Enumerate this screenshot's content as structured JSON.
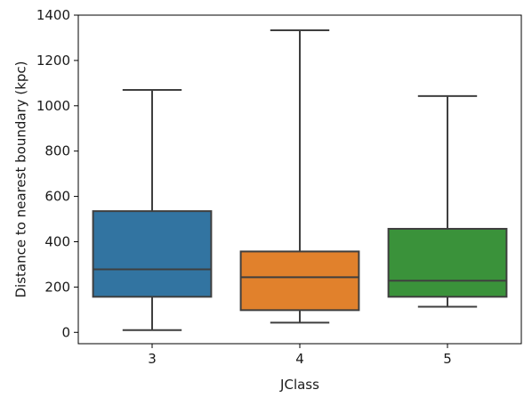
{
  "chart_data": {
    "type": "box",
    "xlabel": "JClass",
    "ylabel": "Distance to nearest boundary (kpc)",
    "ylim": [
      -50,
      1400
    ],
    "yticks": [
      0,
      200,
      400,
      600,
      800,
      1000,
      1200,
      1400
    ],
    "grid": false,
    "categories": [
      "3",
      "4",
      "5"
    ],
    "boxes": [
      {
        "category": "3",
        "whisker_low": 10,
        "q1": 157,
        "median": 278,
        "q3": 535,
        "whisker_high": 1070,
        "color": "#3274a1"
      },
      {
        "category": "4",
        "whisker_low": 43,
        "q1": 98,
        "median": 243,
        "q3": 357,
        "whisker_high": 1333,
        "color": "#e1812c"
      },
      {
        "category": "5",
        "whisker_low": 113,
        "q1": 157,
        "median": 228,
        "q3": 457,
        "whisker_high": 1043,
        "color": "#3a923a"
      }
    ]
  }
}
